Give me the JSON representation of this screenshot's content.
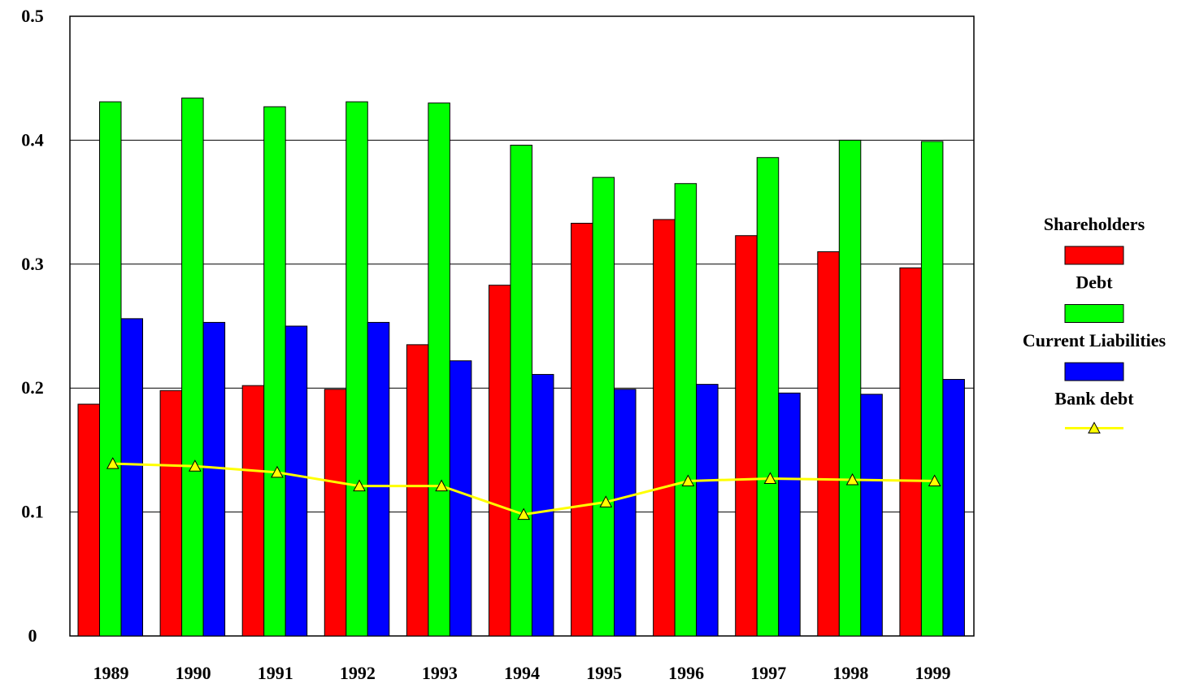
{
  "chart_data": {
    "type": "bar",
    "categories": [
      "1989",
      "1990",
      "1991",
      "1992",
      "1993",
      "1994",
      "1995",
      "1996",
      "1997",
      "1998",
      "1999"
    ],
    "series": [
      {
        "name": "Shareholders",
        "color": "#ff0000",
        "values": [
          0.187,
          0.198,
          0.202,
          0.199,
          0.235,
          0.283,
          0.333,
          0.336,
          0.323,
          0.31,
          0.297
        ]
      },
      {
        "name": "Debt",
        "color": "#00ff00",
        "values": [
          0.431,
          0.434,
          0.427,
          0.431,
          0.43,
          0.396,
          0.37,
          0.365,
          0.386,
          0.4,
          0.399
        ]
      },
      {
        "name": "Current Liabilities",
        "color": "#0000ff",
        "values": [
          0.256,
          0.253,
          0.25,
          0.253,
          0.222,
          0.211,
          0.199,
          0.203,
          0.196,
          0.195,
          0.207
        ]
      },
      {
        "name": "Bank debt",
        "color": "#ffff00",
        "type": "line",
        "values": [
          0.139,
          0.137,
          0.132,
          0.121,
          0.121,
          0.098,
          0.108,
          0.125,
          0.127,
          0.126,
          0.125
        ]
      }
    ],
    "ylim": [
      0,
      0.5
    ],
    "yticks": [
      0,
      0.1,
      0.2,
      0.3,
      0.4,
      0.5
    ],
    "grid": true
  }
}
